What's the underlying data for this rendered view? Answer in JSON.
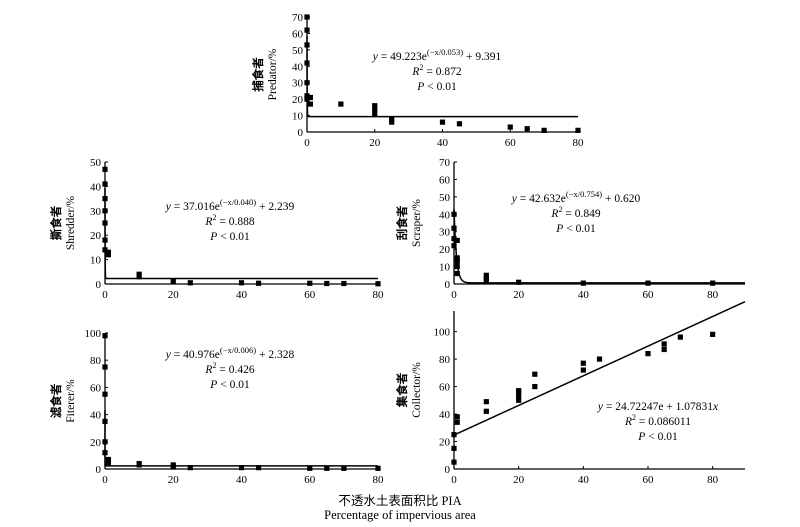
{
  "xlabel_cn": "不透水土表面积比 PIA",
  "xlabel_en": "Percentage of impervious area",
  "chart_data": [
    {
      "id": "predator",
      "type": "scatter",
      "name_cn": "捕食者",
      "name_en": "Predator/%",
      "xlim": [
        0,
        80
      ],
      "ylim": [
        0,
        70
      ],
      "xticks": [
        0,
        20,
        40,
        60,
        80
      ],
      "yticks": [
        0,
        10,
        20,
        30,
        40,
        50,
        60,
        70
      ],
      "points": [
        [
          0,
          70
        ],
        [
          0,
          62
        ],
        [
          0,
          53
        ],
        [
          0,
          42
        ],
        [
          0,
          30
        ],
        [
          0,
          22
        ],
        [
          0,
          20
        ],
        [
          1,
          21
        ],
        [
          1,
          17
        ],
        [
          10,
          17
        ],
        [
          20,
          16
        ],
        [
          20,
          14
        ],
        [
          20,
          11
        ],
        [
          25,
          8
        ],
        [
          25,
          6
        ],
        [
          40,
          6
        ],
        [
          45,
          5
        ],
        [
          60,
          3
        ],
        [
          65,
          2
        ],
        [
          70,
          1
        ],
        [
          80,
          1
        ]
      ],
      "fit": {
        "form": "exp",
        "a": 49.223,
        "b": 0.053,
        "c": 9.391
      },
      "equation": "y = 49.223e(−x/0.053) + 9.391",
      "r2": "R2 = 0.872",
      "p": "P < 0.01"
    },
    {
      "id": "shredder",
      "type": "scatter",
      "name_cn": "撕食者",
      "name_en": "Shredder/%",
      "xlim": [
        0,
        80
      ],
      "ylim": [
        0,
        50
      ],
      "xticks": [
        0,
        20,
        40,
        60,
        80
      ],
      "yticks": [
        0,
        10,
        20,
        30,
        40,
        50
      ],
      "points": [
        [
          0,
          47
        ],
        [
          0,
          41
        ],
        [
          0,
          35
        ],
        [
          0,
          30
        ],
        [
          0,
          25
        ],
        [
          0,
          18
        ],
        [
          0,
          14
        ],
        [
          1,
          13
        ],
        [
          1,
          12
        ],
        [
          10,
          4
        ],
        [
          10,
          3
        ],
        [
          20,
          1
        ],
        [
          25,
          0.5
        ],
        [
          40,
          0.5
        ],
        [
          45,
          0.3
        ],
        [
          60,
          0.3
        ],
        [
          65,
          0.2
        ],
        [
          70,
          0.2
        ],
        [
          80,
          0.1
        ]
      ],
      "fit": {
        "form": "exp",
        "a": 37.016,
        "b": 0.04,
        "c": 2.239
      },
      "equation": "y = 37.016e(−x/0.040) + 2.239",
      "r2": "R2 = 0.888",
      "p": "P < 0.01"
    },
    {
      "id": "scraper",
      "type": "scatter",
      "name_cn": "刮食者",
      "name_en": "Scraper/%",
      "xlim": [
        0,
        90
      ],
      "ylim": [
        0,
        70
      ],
      "xticks": [
        0,
        20,
        40,
        60,
        80
      ],
      "yticks": [
        0,
        10,
        20,
        30,
        40,
        50,
        60,
        70
      ],
      "points": [
        [
          0,
          40
        ],
        [
          0,
          32
        ],
        [
          0,
          26
        ],
        [
          0,
          22
        ],
        [
          1,
          25
        ],
        [
          1,
          15
        ],
        [
          1,
          13
        ],
        [
          1,
          10
        ],
        [
          1,
          6
        ],
        [
          10,
          5
        ],
        [
          10,
          3
        ],
        [
          10,
          2
        ],
        [
          20,
          1
        ],
        [
          40,
          0.5
        ],
        [
          60,
          0.5
        ],
        [
          80,
          0.5
        ]
      ],
      "fit": {
        "form": "exp",
        "a": 42.632,
        "b": 0.754,
        "c": 0.62
      },
      "equation": "y = 42.632e(−x/0.754) + 0.620",
      "r2": "R2 = 0.849",
      "p": "P < 0.01"
    },
    {
      "id": "filterer",
      "type": "scatter",
      "name_cn": "滤食者",
      "name_en": "Fiterer/%",
      "xlim": [
        0,
        80
      ],
      "ylim": [
        0,
        100
      ],
      "xticks": [
        0,
        20,
        40,
        60,
        80
      ],
      "yticks": [
        0,
        20,
        40,
        60,
        80,
        100
      ],
      "points": [
        [
          0,
          98
        ],
        [
          0,
          75
        ],
        [
          0,
          55
        ],
        [
          0,
          35
        ],
        [
          0,
          20
        ],
        [
          0,
          12
        ],
        [
          1,
          7
        ],
        [
          1,
          5
        ],
        [
          1,
          4
        ],
        [
          10,
          4
        ],
        [
          10,
          3
        ],
        [
          20,
          3
        ],
        [
          20,
          1.5
        ],
        [
          25,
          1
        ],
        [
          40,
          1
        ],
        [
          45,
          1
        ],
        [
          60,
          0.5
        ],
        [
          65,
          0.5
        ],
        [
          70,
          0.5
        ],
        [
          80,
          0.5
        ]
      ],
      "fit": {
        "form": "exp",
        "a": 40.976,
        "b": 0.006,
        "c": 2.328
      },
      "equation": "y = 40.976e(−x/0.006) + 2.328",
      "r2": "R2 = 0.426",
      "p": "P < 0.01"
    },
    {
      "id": "collector",
      "type": "scatter",
      "name_cn": "集食者",
      "name_en": "Collector/%",
      "xlim": [
        0,
        90
      ],
      "ylim": [
        0,
        115
      ],
      "xticks": [
        0,
        20,
        40,
        60,
        80
      ],
      "yticks": [
        0,
        20,
        40,
        60,
        80,
        100
      ],
      "points": [
        [
          0,
          5
        ],
        [
          0,
          15
        ],
        [
          0,
          25
        ],
        [
          1,
          34
        ],
        [
          1,
          38
        ],
        [
          10,
          42
        ],
        [
          10,
          49
        ],
        [
          20,
          50
        ],
        [
          20,
          53
        ],
        [
          20,
          56
        ],
        [
          20,
          57
        ],
        [
          25,
          60
        ],
        [
          25,
          69
        ],
        [
          40,
          72
        ],
        [
          40,
          77
        ],
        [
          45,
          80
        ],
        [
          60,
          84
        ],
        [
          65,
          87
        ],
        [
          65,
          91
        ],
        [
          70,
          96
        ],
        [
          80,
          98
        ]
      ],
      "fit": {
        "form": "linear",
        "a": 24.72247,
        "b": 1.07831
      },
      "equation": "y = 24.72247e + 1.07831x",
      "r2": "R2 = 0.086011",
      "p": "P < 0.01"
    }
  ]
}
